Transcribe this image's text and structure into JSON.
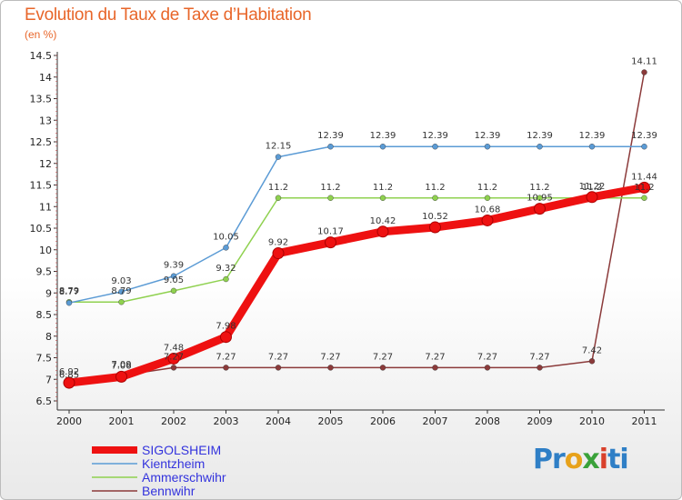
{
  "chart_data": {
    "type": "line",
    "title": "Evolution du Taux de Taxe d’Habitation",
    "subtitle": "(en %)",
    "x": [
      "2000",
      "2001",
      "2002",
      "2003",
      "2004",
      "2005",
      "2006",
      "2007",
      "2008",
      "2009",
      "2010",
      "2011"
    ],
    "ylim": [
      6.5,
      14.5
    ],
    "yticks": [
      "6.5",
      "7",
      "7.5",
      "8",
      "8.5",
      "9",
      "9.5",
      "10",
      "10.5",
      "11",
      "11.5",
      "12",
      "12.5",
      "13",
      "13.5",
      "14",
      "14.5"
    ],
    "grid": false,
    "legend_position": "bottom-left",
    "series": [
      {
        "name": "SIGOLSHEIM",
        "color": "#ee1111",
        "values": [
          6.92,
          7.06,
          7.48,
          7.98,
          9.92,
          10.17,
          10.42,
          10.52,
          10.68,
          10.95,
          11.22,
          11.44
        ],
        "labels": [
          "6.92",
          "7.06",
          "7.48",
          "7.98",
          "9.92",
          "10.17",
          "10.42",
          "10.52",
          "10.68",
          "10.95",
          "11.22",
          "11.44"
        ]
      },
      {
        "name": "Kientzheim",
        "color": "#5b9bd5",
        "values": [
          8.77,
          9.03,
          9.39,
          10.05,
          12.15,
          12.39,
          12.39,
          12.39,
          12.39,
          12.39,
          12.39,
          12.39
        ],
        "labels": [
          "8.77",
          "9.03",
          "9.39",
          "10.05",
          "12.15",
          "12.39",
          "12.39",
          "12.39",
          "12.39",
          "12.39",
          "12.39",
          "12.39"
        ]
      },
      {
        "name": "Ammerschwihr",
        "color": "#8fd14f",
        "values": [
          8.79,
          8.79,
          9.05,
          9.32,
          11.2,
          11.2,
          11.2,
          11.2,
          11.2,
          11.2,
          11.2,
          11.2
        ],
        "labels": [
          "8.79",
          "8.79",
          "9.05",
          "9.32",
          "11.2",
          "11.2",
          "11.2",
          "11.2",
          "11.2",
          "11.2",
          "11.2",
          "11.2"
        ]
      },
      {
        "name": "Bennwihr",
        "color": "#8b3a3a",
        "values": [
          6.85,
          7.09,
          7.27,
          7.27,
          7.27,
          7.27,
          7.27,
          7.27,
          7.27,
          7.27,
          7.42,
          14.11
        ],
        "labels": [
          "6.85",
          "7.09",
          "7.27",
          "7.27",
          "7.27",
          "7.27",
          "7.27",
          "7.27",
          "7.27",
          "7.27",
          "7.42",
          "14.11"
        ]
      }
    ]
  },
  "legend": [
    {
      "name": "SIGOLSHEIM",
      "color": "#3333dd",
      "swatch": "#ee1111"
    },
    {
      "name": "Kientzheim",
      "color": "#3333dd",
      "swatch": "#5b9bd5"
    },
    {
      "name": "Ammerschwihr",
      "color": "#3333dd",
      "swatch": "#8fd14f"
    },
    {
      "name": "Bennwihr",
      "color": "#3333dd",
      "swatch": "#8b3a3a"
    }
  ],
  "logo": [
    "P",
    "r",
    "o",
    "x",
    "i",
    "ti"
  ]
}
